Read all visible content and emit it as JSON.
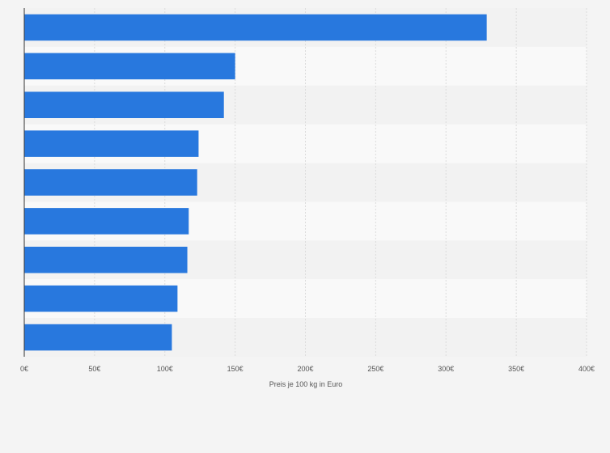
{
  "chart_data": {
    "type": "bar",
    "orientation": "horizontal",
    "categories": [
      "",
      "",
      "",
      "",
      "",
      "",
      "",
      "",
      ""
    ],
    "values": [
      329,
      150,
      142,
      124,
      123,
      117,
      116,
      109,
      105
    ],
    "title": "",
    "xlabel": "Preis je 100 kg in Euro",
    "ylabel": "",
    "xlim": [
      0,
      400
    ],
    "x_ticks": [
      0,
      50,
      100,
      150,
      200,
      250,
      300,
      350,
      400
    ],
    "x_tick_labels": [
      "0€",
      "50€",
      "100€",
      "150€",
      "200€",
      "250€",
      "300€",
      "350€",
      "400€"
    ],
    "grid": true,
    "bar_color": "#2878de",
    "band_colors": [
      "#f2f2f2",
      "#f9f9f9"
    ]
  }
}
